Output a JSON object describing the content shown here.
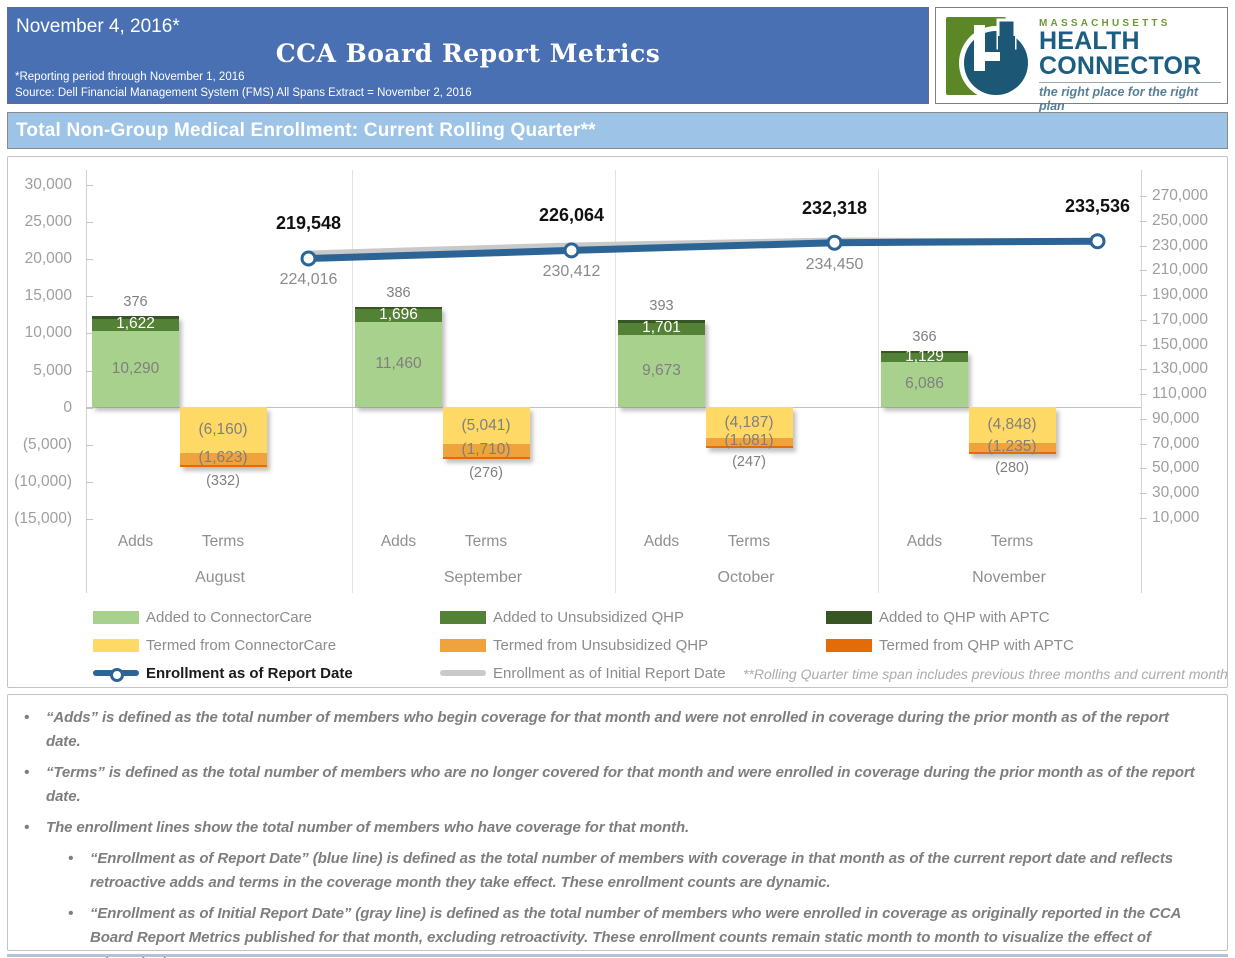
{
  "header": {
    "date": "November 4, 2016*",
    "title": "CCA Board Report Metrics",
    "note1": "*Reporting period through November 1, 2016",
    "note2": "Source: Dell Financial Management System (FMS) All Spans Extract = November 2, 2016"
  },
  "logo": {
    "brand_top": "MASSACHUSETTS",
    "brand_line1": "HEALTH",
    "brand_line2": "CONNECTOR",
    "tagline": "the right place for the right plan"
  },
  "section_title": "Total Non-Group Medical Enrollment: Current Rolling Quarter**",
  "colors": {
    "header_blue": "#4a70b4",
    "section_blue": "#9dc3e6",
    "add_cc": "#a9d18e",
    "add_unsub": "#538135",
    "add_aptc": "#375623",
    "term_cc": "#ffd966",
    "term_unsub": "#f0a23c",
    "term_aptc": "#e36c09",
    "line_blue": "#2c6496",
    "line_gray": "#c9c9c9",
    "logo_green": "#5c8727",
    "logo_blue": "#1c5876"
  },
  "chart_data": {
    "type": "bar",
    "subtype": "stacked adds/terms bars with two enrollment lines (combo chart, dual axis)",
    "months": [
      "August",
      "September",
      "October",
      "November"
    ],
    "bar_categories": [
      "Adds",
      "Terms"
    ],
    "adds_series": [
      {
        "name": "Added to ConnectorCare",
        "color_key": "add_cc",
        "values": [
          10290,
          11460,
          9673,
          6086
        ],
        "labels": [
          "10,290",
          "11,460",
          "9,673",
          "6,086"
        ]
      },
      {
        "name": "Added to Unsubsidized QHP",
        "color_key": "add_unsub",
        "values": [
          1622,
          1696,
          1701,
          1129
        ],
        "labels": [
          "1,622",
          "1,696",
          "1,701",
          "1,129"
        ]
      },
      {
        "name": "Added to QHP with APTC",
        "color_key": "add_aptc",
        "values": [
          376,
          386,
          393,
          366
        ],
        "labels": [
          "376",
          "386",
          "393",
          "366"
        ]
      }
    ],
    "terms_series": [
      {
        "name": "Termed from ConnectorCare",
        "color_key": "term_cc",
        "values": [
          -6160,
          -5041,
          -4187,
          -4848
        ],
        "labels": [
          "(6,160)",
          "(5,041)",
          "(4,187)",
          "(4,848)"
        ]
      },
      {
        "name": "Termed from Unsubsidized QHP",
        "color_key": "term_unsub",
        "values": [
          -1623,
          -1710,
          -1081,
          -1235
        ],
        "labels": [
          "(1,623)",
          "(1,710)",
          "(1,081)",
          "(1,235)"
        ]
      },
      {
        "name": "Termed from QHP with APTC",
        "color_key": "term_aptc",
        "values": [
          -332,
          -276,
          -247,
          -280
        ],
        "labels": [
          "(332)",
          "(276)",
          "(247)",
          "(280)"
        ]
      }
    ],
    "lines": [
      {
        "name": "Enrollment as of Report Date",
        "color_key": "line_blue",
        "values": [
          219548,
          226064,
          232318,
          233536
        ],
        "labels": [
          "219,548",
          "226,064",
          "232,318",
          "233,536"
        ],
        "label_position": "above",
        "markers": true
      },
      {
        "name": "Enrollment as of Initial Report Date",
        "color_key": "line_gray",
        "values": [
          224016,
          230412,
          234450,
          233536
        ],
        "labels": [
          "224,016",
          "230,412",
          "234,450",
          ""
        ],
        "label_position": "below",
        "markers": false
      }
    ],
    "left_axis": {
      "labels": [
        "30,000",
        "25,000",
        "20,000",
        "15,000",
        "10,000",
        "5,000",
        "0",
        "(5,000)",
        "(10,000)",
        "(15,000)"
      ],
      "values": [
        30000,
        25000,
        20000,
        15000,
        10000,
        5000,
        0,
        -5000,
        -10000,
        -15000
      ]
    },
    "right_axis": {
      "labels": [
        "270,000",
        "250,000",
        "230,000",
        "210,000",
        "190,000",
        "170,000",
        "150,000",
        "130,000",
        "110,000",
        "90,000",
        "70,000",
        "50,000",
        "30,000",
        "10,000"
      ],
      "values": [
        270000,
        250000,
        230000,
        210000,
        190000,
        170000,
        150000,
        130000,
        110000,
        90000,
        70000,
        50000,
        30000,
        10000
      ]
    },
    "grid": "vertical month separators only, zero baseline",
    "legend_position": "bottom, 3 columns x 3 rows"
  },
  "legend": {
    "rows": [
      [
        {
          "type": "swatch",
          "color_key": "add_cc",
          "label": "Added to ConnectorCare"
        },
        {
          "type": "swatch",
          "color_key": "add_unsub",
          "label": "Added to Unsubsidized QHP"
        },
        {
          "type": "swatch",
          "color_key": "add_aptc",
          "label": "Added to QHP with APTC"
        }
      ],
      [
        {
          "type": "swatch",
          "color_key": "term_cc",
          "label": "Termed from ConnectorCare"
        },
        {
          "type": "swatch",
          "color_key": "term_unsub",
          "label": "Termed from Unsubsidized QHP"
        },
        {
          "type": "swatch",
          "color_key": "term_aptc",
          "label": "Termed from QHP with APTC"
        }
      ],
      [
        {
          "type": "line_marker",
          "color_key": "line_blue",
          "label": "Enrollment as of Report Date",
          "emphasis": true
        },
        {
          "type": "line",
          "color_key": "line_gray",
          "label": "Enrollment as of Initial Report Date"
        },
        {
          "type": "note",
          "label": "**Rolling Quarter time span includes previous three months and current month"
        }
      ]
    ]
  },
  "notes": [
    {
      "level": 1,
      "text": "“Adds” is defined as the total number of members who begin coverage for that month and were not enrolled in coverage during the prior month as of the report date."
    },
    {
      "level": 1,
      "text": "“Terms” is defined as the total number of members who are no longer covered for that month and were enrolled in coverage during the prior month as of the report date."
    },
    {
      "level": 1,
      "text": "The enrollment lines show the total number of members who have coverage for that month."
    },
    {
      "level": 2,
      "text": "“Enrollment as of Report Date” (blue line) is defined as the total number of members with coverage in that month as of the current report date and reflects retroactive adds and terms in the coverage month they take effect. These enrollment counts are dynamic."
    },
    {
      "level": 2,
      "text": "“Enrollment as of Initial Report Date” (gray line) is defined as the total number of members who were enrolled in coverage as originally reported in the CCA Board Report Metrics published for that month, excluding retroactivity. These enrollment counts remain static month to month to visualize the effect of retroactivity."
    }
  ],
  "bullet_char": "•"
}
